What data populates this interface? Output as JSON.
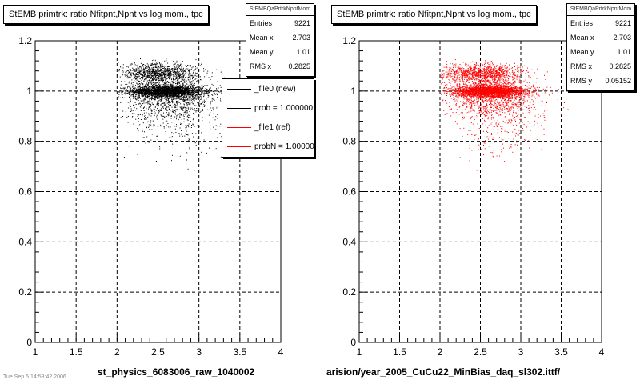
{
  "pads": [
    {
      "title": "StEMB primtrk: ratio Nfitpnt,Npnt vs log mom., tpc",
      "xlabel": "st_physics_6083006_raw_1040002",
      "stats": {
        "name": "StEMBQaPrtrkNpntMom",
        "rows": [
          {
            "label": "Entries",
            "value": "9221"
          },
          {
            "label": "Mean x",
            "value": "2.703"
          },
          {
            "label": "Mean y",
            "value": "1.01"
          },
          {
            "label": "RMS x",
            "value": "0.2825"
          }
        ]
      },
      "legend": [
        {
          "text": "_file0 (new)",
          "color": "#000000"
        },
        {
          "text": "prob = 1.000000",
          "color": "#000000"
        },
        {
          "text": "_file1 (ref)",
          "color": "#ff0000"
        },
        {
          "text": "probN = 1.000000",
          "color": "#ff0000"
        }
      ]
    },
    {
      "title": "StEMB primtrk: ratio Nfitpnt,Npnt vs log mom., tpc",
      "xlabel": "arision/year_2005_CuCu22_MinBias_daq_sl302.ittf/",
      "stats": {
        "name": "StEMBQaPrtrkNpntMom",
        "rows": [
          {
            "label": "Entries",
            "value": "9221"
          },
          {
            "label": "Mean x",
            "value": "2.703"
          },
          {
            "label": "Mean y",
            "value": "1.01"
          },
          {
            "label": "RMS x",
            "value": "0.2825"
          },
          {
            "label": "RMS y",
            "value": "0.05152"
          }
        ]
      },
      "legend": []
    }
  ],
  "footer": "Tue Sep 5 14:58:42 2006",
  "chart_data": [
    {
      "type": "scatter",
      "title": "StEMB primtrk: ratio Nfitpnt,Npnt vs log mom., tpc",
      "xlabel": "st_physics_6083006_raw_1040002",
      "ylabel": "",
      "xlim": [
        1,
        4
      ],
      "ylim": [
        0,
        1.2
      ],
      "xticks": [
        "1",
        "1.5",
        "2",
        "2.5",
        "3",
        "3.5",
        "4"
      ],
      "yticks": [
        "0",
        "0.2",
        "0.4",
        "0.6",
        "0.8",
        "1",
        "1.2"
      ],
      "grid": true,
      "marker_color": "#000000",
      "series": [
        {
          "name": "_file0 (new)",
          "entries": 9221,
          "mean_x": 2.703,
          "mean_y": 1.01,
          "rms_x": 0.2825,
          "rms_y": 0.05152,
          "x_extent": [
            2.0,
            3.5
          ],
          "y_extent": [
            0.55,
            1.13
          ]
        }
      ]
    },
    {
      "type": "scatter",
      "title": "StEMB primtrk: ratio Nfitpnt,Npnt vs log mom., tpc",
      "xlabel": "arision/year_2005_CuCu22_MinBias_daq_sl302.ittf/",
      "ylabel": "",
      "xlim": [
        1,
        4
      ],
      "ylim": [
        0,
        1.2
      ],
      "xticks": [
        "1",
        "1.5",
        "2",
        "2.5",
        "3",
        "3.5",
        "4"
      ],
      "yticks": [
        "0",
        "0.2",
        "0.4",
        "0.6",
        "0.8",
        "1",
        "1.2"
      ],
      "grid": true,
      "marker_color": "#ff0000",
      "series": [
        {
          "name": "_file1 (ref)",
          "entries": 9221,
          "mean_x": 2.703,
          "mean_y": 1.01,
          "rms_x": 0.2825,
          "rms_y": 0.05152,
          "x_extent": [
            2.0,
            3.8
          ],
          "y_extent": [
            0.55,
            1.13
          ]
        }
      ]
    }
  ]
}
